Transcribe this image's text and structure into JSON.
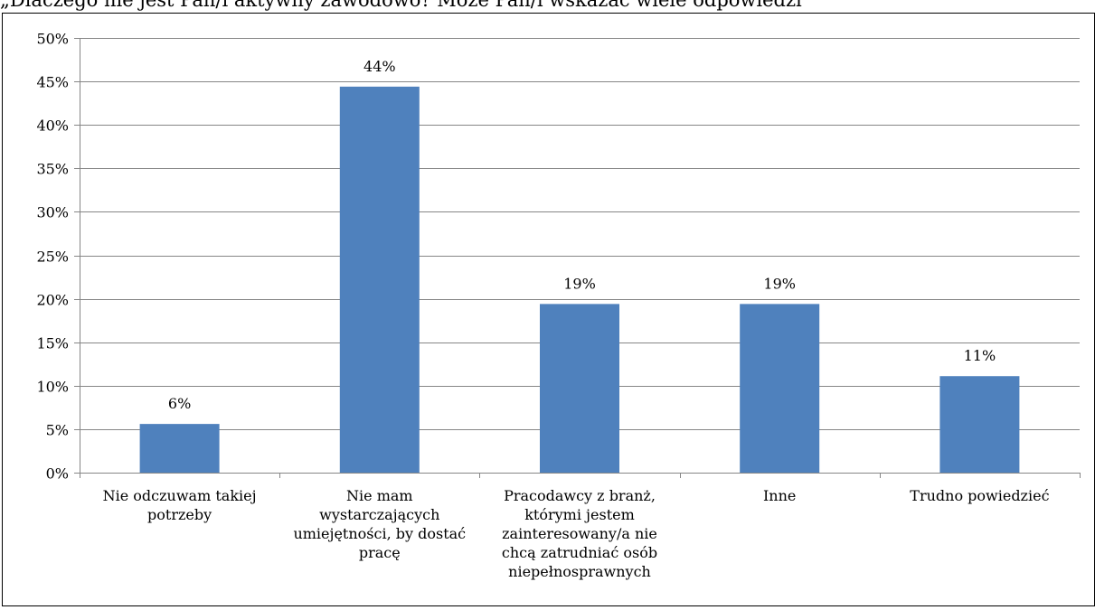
{
  "question": "„Dlaczego nie jest Pan/i aktywny zawodowo? Może Pan/i wskazać wiele odpowiedzi",
  "chart_data": {
    "type": "bar",
    "categories": [
      [
        "Nie odczuwam takiej",
        "potrzeby"
      ],
      [
        "Nie mam",
        "wystarczających",
        "umiejętności, by dostać",
        "pracę"
      ],
      [
        "Pracodawcy z branż,",
        "którymi jestem",
        "zainteresowany/a nie",
        "chcą zatrudniać osób",
        "niepełnosprawnych"
      ],
      [
        "Inne"
      ],
      [
        "Trudno powiedzieć"
      ]
    ],
    "values": [
      5.6,
      44.4,
      19.4,
      19.4,
      11.1
    ],
    "data_labels": [
      "6%",
      "44%",
      "19%",
      "19%",
      "11%"
    ],
    "ylim": [
      0,
      50
    ],
    "yticks": [
      0,
      5,
      10,
      15,
      20,
      25,
      30,
      35,
      40,
      45,
      50
    ],
    "ytick_labels": [
      "0%",
      "5%",
      "10%",
      "15%",
      "20%",
      "25%",
      "30%",
      "35%",
      "40%",
      "45%",
      "50%"
    ],
    "grid": true,
    "legend": "none",
    "bar_color": "#4f81bd",
    "grid_color": "#868686",
    "axis_color": "#868686"
  }
}
